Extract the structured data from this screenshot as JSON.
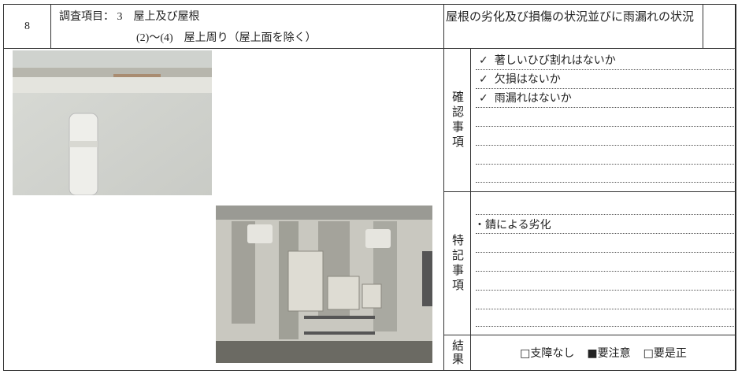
{
  "header": {
    "number": "8",
    "item_title": "調査項目： 3　屋上及び屋根",
    "item_sub": "(2)～(4)　屋上周り（屋上面を除く）",
    "subject": "屋根の劣化及び損傷の状況並びに雨漏れの状況"
  },
  "confirm": {
    "label": "確認事項",
    "items": [
      {
        "mark": "✓",
        "text": "著しいひび割れはないか"
      },
      {
        "mark": "✓",
        "text": "欠損はないか"
      },
      {
        "mark": "✓",
        "text": "雨漏れはないか"
      }
    ]
  },
  "notes": {
    "label": "特記事項",
    "items": [
      "・錆による劣化"
    ]
  },
  "result": {
    "label": "結果",
    "options": [
      "□支障なし",
      "■要注意",
      "□要是正"
    ]
  }
}
